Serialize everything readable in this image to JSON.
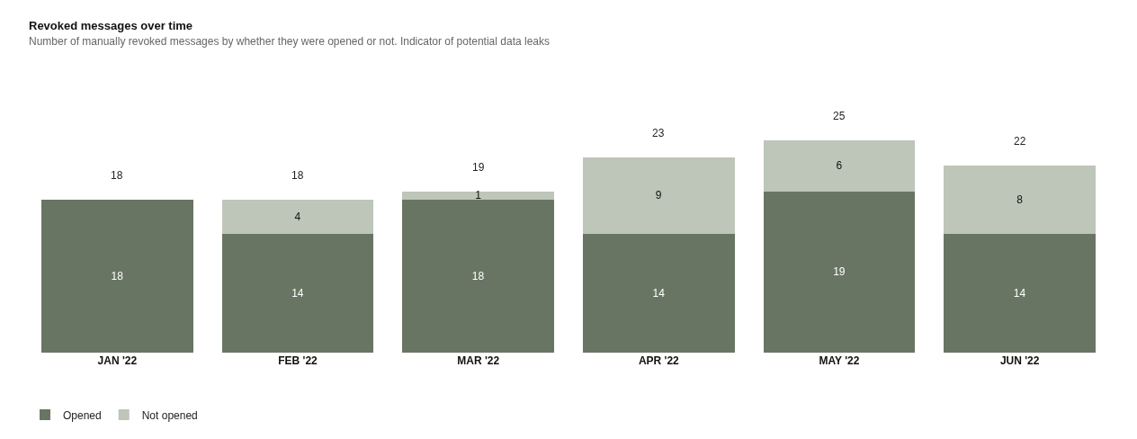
{
  "chart_data": {
    "type": "bar",
    "title": "Revoked messages over time",
    "subtitle": "Number of manually revoked messages by whether they were opened or not. Indicator of potential data leaks",
    "categories": [
      "JAN '22",
      "FEB '22",
      "MAR '22",
      "APR '22",
      "MAY '22",
      "JUN '22"
    ],
    "stacked": true,
    "data_labels": true,
    "legend": "bottom left",
    "series": [
      {
        "name": "Opened",
        "color": "#687563",
        "values": [
          18,
          14,
          18,
          14,
          19,
          14
        ]
      },
      {
        "name": "Not opened",
        "color": "#bec5b9",
        "values": [
          null,
          4,
          1,
          9,
          6,
          8
        ]
      }
    ],
    "totals": [
      "18",
      "18",
      "19",
      "23",
      "25",
      "22"
    ]
  }
}
